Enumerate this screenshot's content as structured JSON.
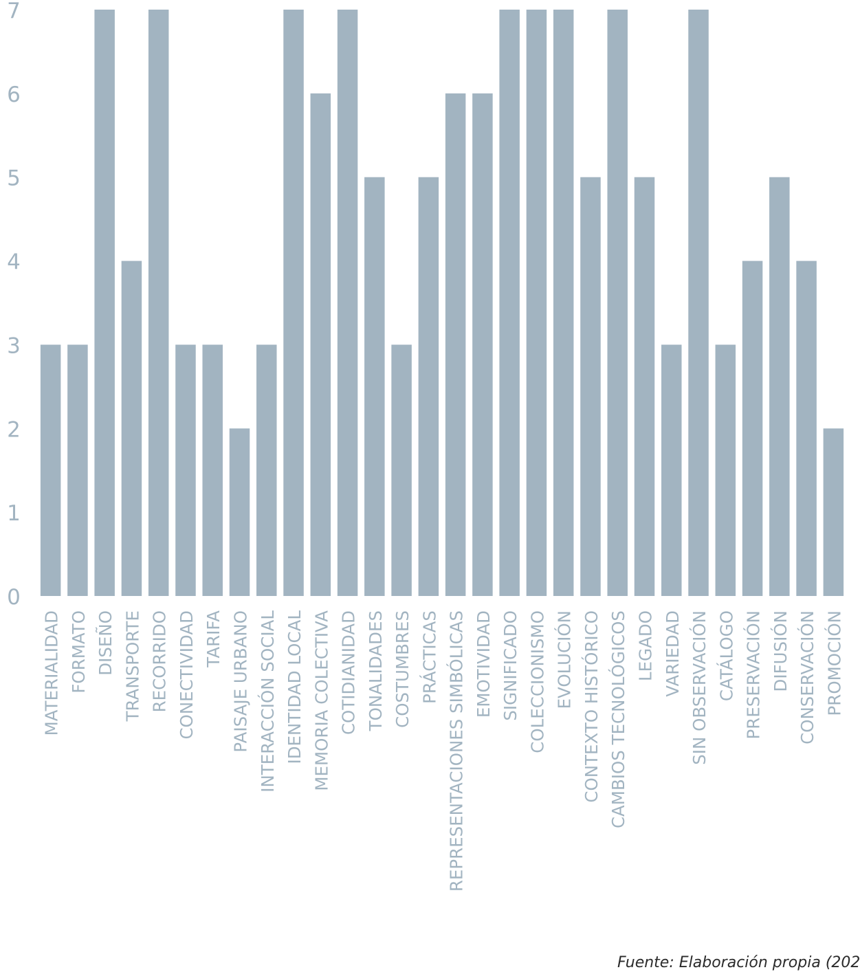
{
  "colors": {
    "bar": "#a2b4c1",
    "tick_text": "#a2b4c1",
    "background": "#ffffff",
    "note_text": "#2b2b2b"
  },
  "source_note": "Fuente: Elaboración propia (202",
  "chart_data": {
    "type": "bar",
    "title": "",
    "xlabel": "",
    "ylabel": "",
    "ylim": [
      0,
      7
    ],
    "yticks": [
      0,
      1,
      2,
      3,
      4,
      5,
      6,
      7
    ],
    "grid": false,
    "legend": "none",
    "categories": [
      "MATERIALIDAD",
      "FORMATO",
      "DISEÑO",
      "TRANSPORTE",
      "RECORRIDO",
      "CONECTIVIDAD",
      "TARIFA",
      "PAISAJE URBANO",
      "INTERACCIÓN SOCIAL",
      "IDENTIDAD LOCAL",
      "MEMORIA COLECTIVA",
      "COTIDIANIDAD",
      "TONALIDADES",
      "COSTUMBRES",
      "PRÁCTICAS",
      "REPRESENTACIONES SIMBÓLICAS",
      "EMOTIVIDAD",
      "SIGNIFICADO",
      "COLECCIONISMO",
      "EVOLUCIÓN",
      "CONTEXTO HISTÓRICO",
      "CAMBIOS TECNOLÓGICOS",
      "LEGADO",
      "VARIEDAD",
      "SIN OBSERVACIÓN",
      "CATÁLOGO",
      "PRESERVACIÓN",
      "DIFUSIÓN",
      "CONSERVACIÓN",
      "PROMOCIÓN"
    ],
    "values": [
      3,
      3,
      7,
      4,
      7,
      3,
      3,
      2,
      3,
      7,
      6,
      7,
      5,
      3,
      5,
      6,
      6,
      7,
      7,
      7,
      5,
      7,
      5,
      3,
      7,
      3,
      4,
      5,
      4,
      2
    ]
  }
}
